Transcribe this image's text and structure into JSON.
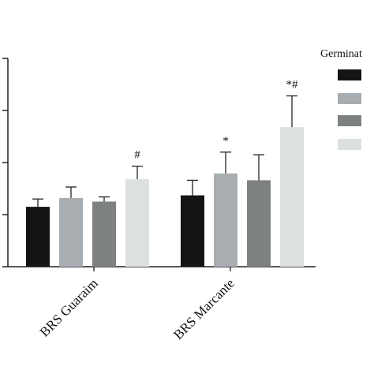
{
  "chart_data": {
    "type": "bar",
    "categories": [
      "BRS Guaraim",
      "BRS Marcante"
    ],
    "series": [
      {
        "values": [
          1.15,
          1.37
        ],
        "errors": [
          0.15,
          0.29
        ],
        "color": "#141414"
      },
      {
        "values": [
          1.32,
          1.79
        ],
        "errors": [
          0.21,
          0.41
        ],
        "color": "#a8adb2"
      },
      {
        "values": [
          1.25,
          1.66
        ],
        "errors": [
          0.09,
          0.49
        ],
        "color": "#7d8280"
      },
      {
        "values": [
          1.68,
          2.68
        ],
        "errors": [
          0.25,
          0.6
        ],
        "color": "#dde0e0"
      }
    ],
    "annotations": [
      {
        "series": 3,
        "category": 0,
        "text": "#"
      },
      {
        "series": 1,
        "category": 1,
        "text": "*"
      },
      {
        "series": 3,
        "category": 1,
        "text": "*#"
      }
    ],
    "legend": {
      "title": "Germinat",
      "placement": "right"
    },
    "ylim": [
      0,
      4
    ],
    "yticks": [
      0,
      1,
      2,
      3,
      4
    ],
    "grid": false,
    "xlabel": "",
    "ylabel": ""
  }
}
